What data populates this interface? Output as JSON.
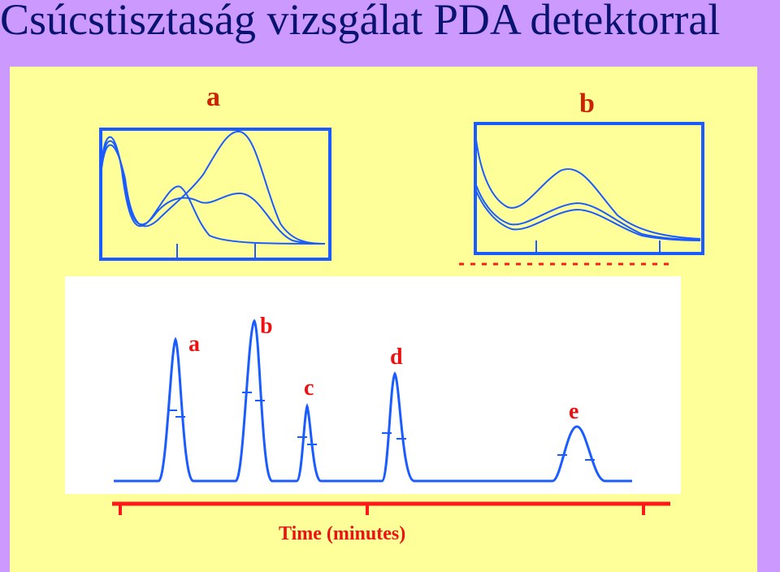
{
  "title": "Csúcstisztaság vizsgálat PDA detektorral",
  "spectra": [
    {
      "label": "a"
    },
    {
      "label": "b"
    }
  ],
  "chromatogram": {
    "peaks": [
      {
        "label": "a"
      },
      {
        "label": "b"
      },
      {
        "label": "c"
      },
      {
        "label": "d"
      },
      {
        "label": "e"
      }
    ],
    "xlabel": "Time (minutes)"
  },
  "colors": {
    "background": "#cc99ff",
    "panel": "#ffff99",
    "trace": "#1a5cff",
    "axis_red": "#ff1a1a",
    "title": "#0a1470"
  }
}
